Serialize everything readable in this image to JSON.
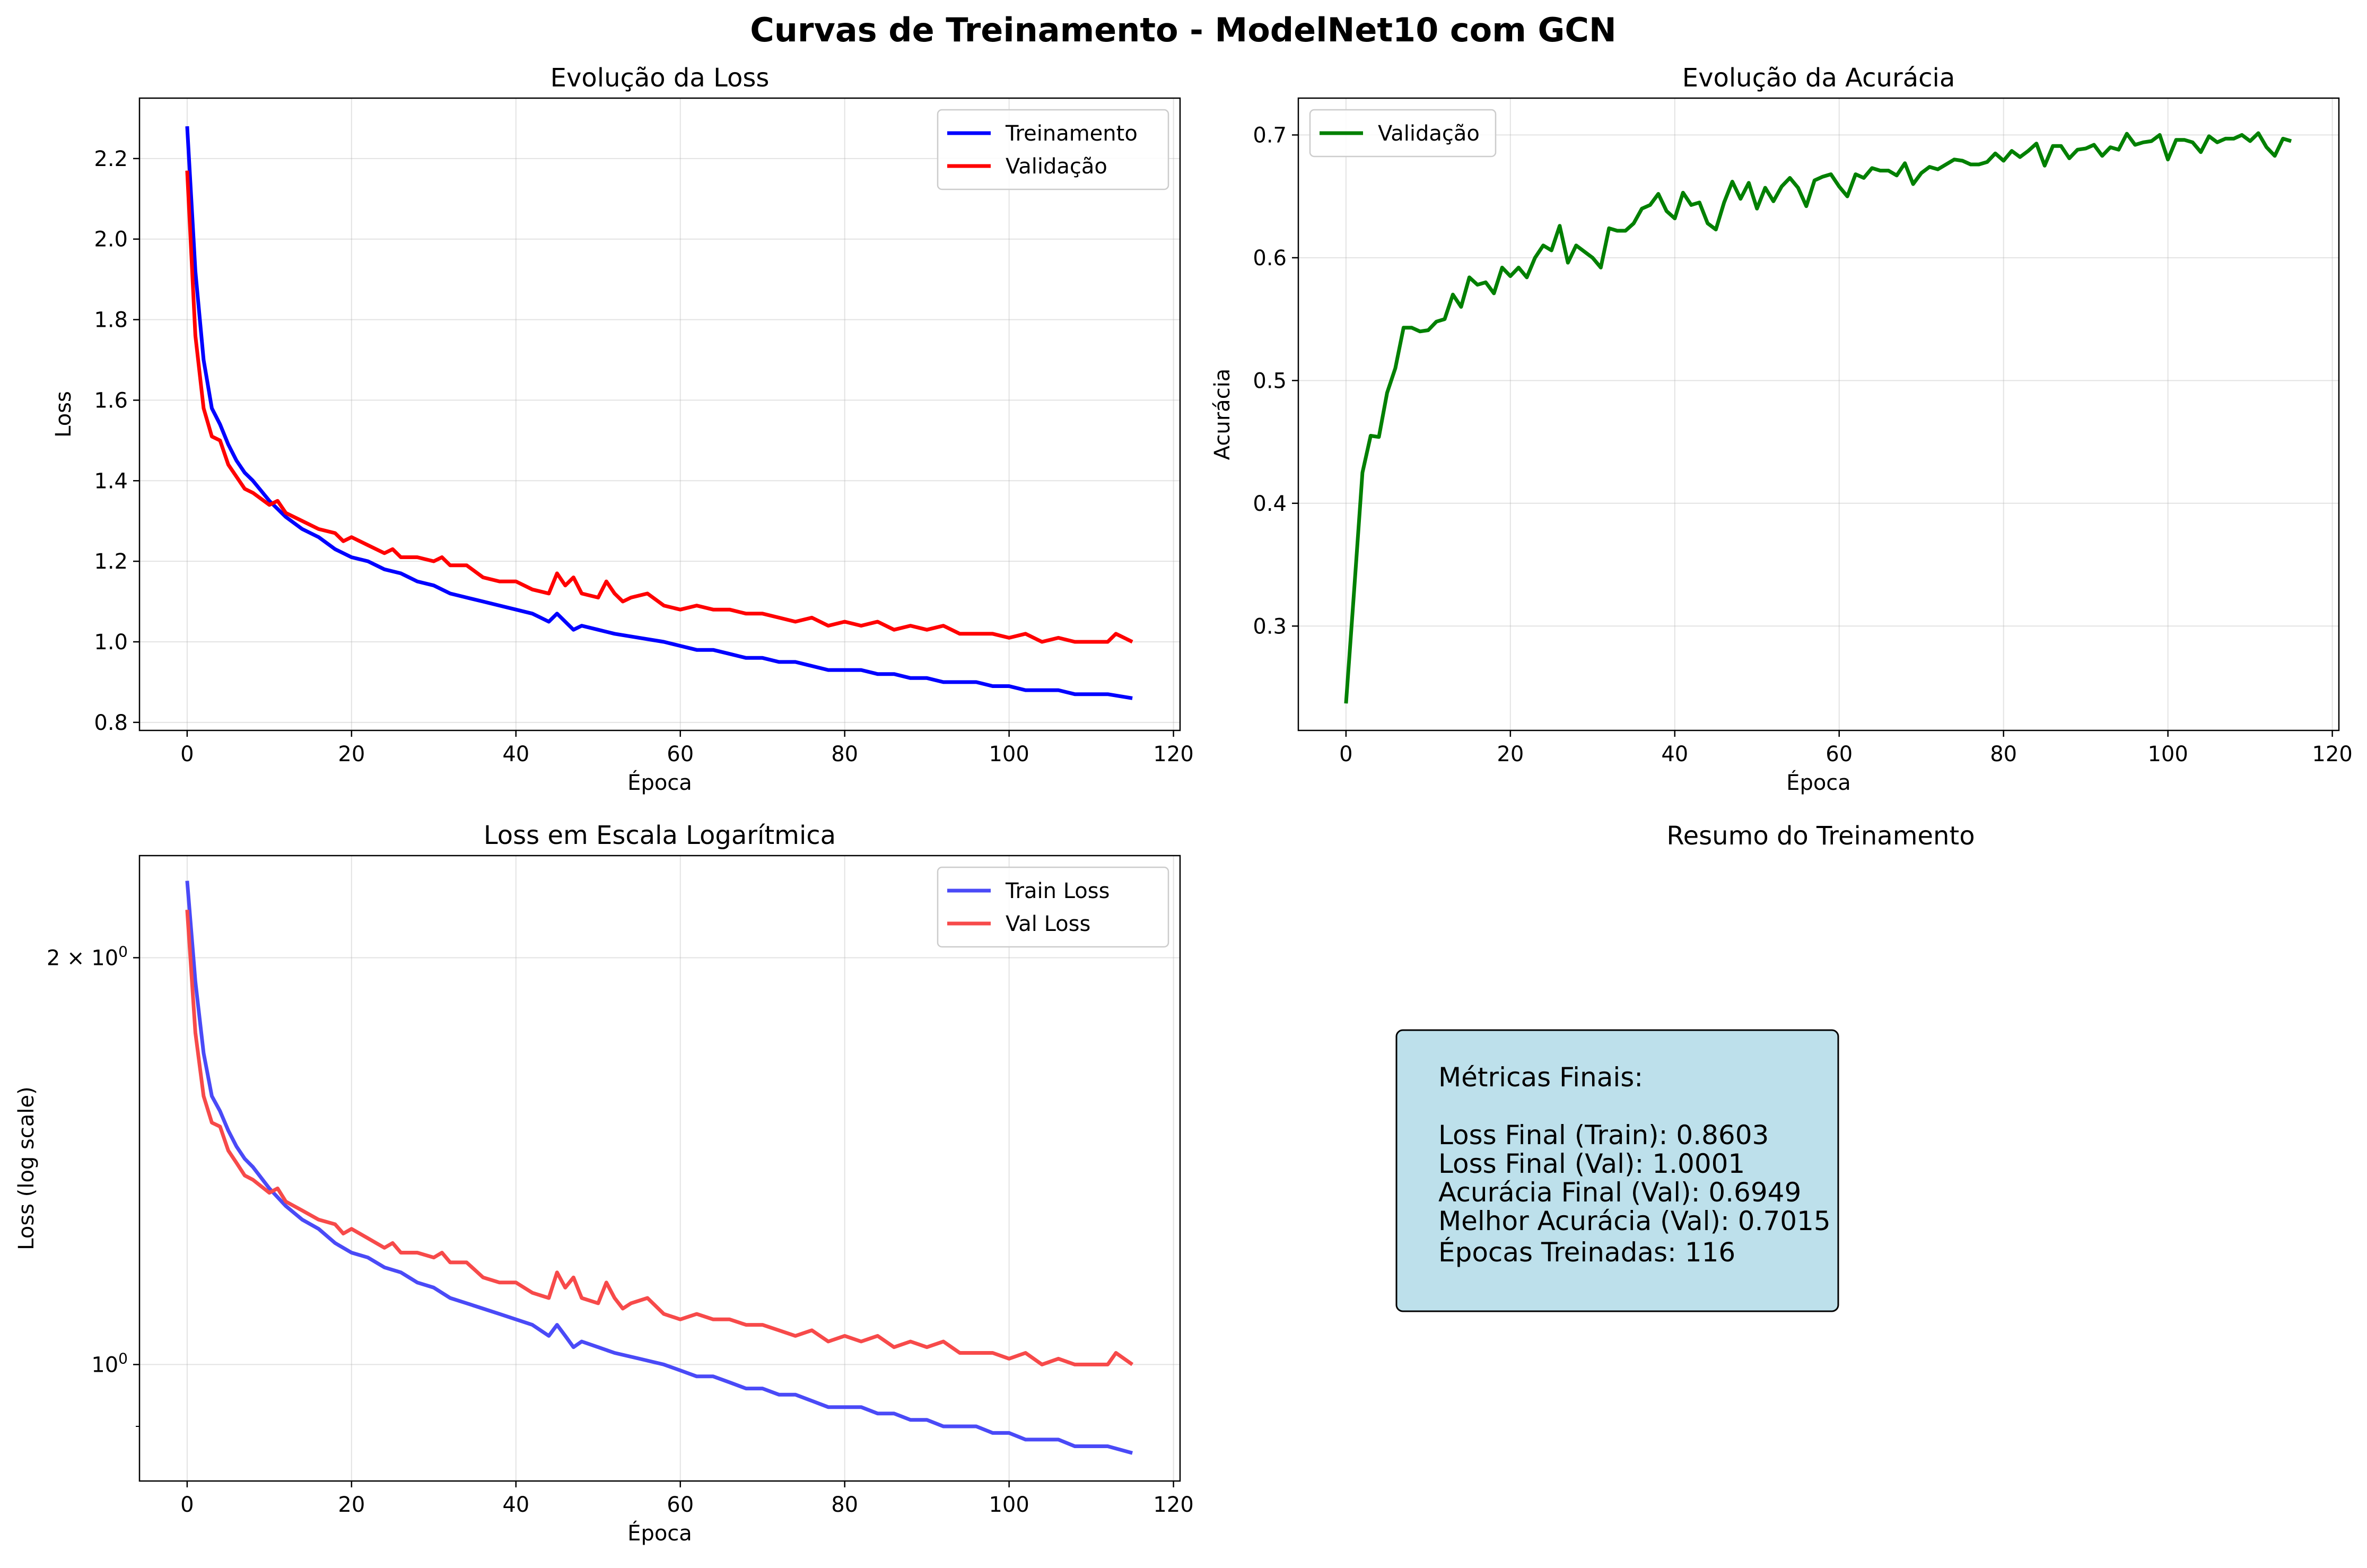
{
  "figure": {
    "title": "Curvas de Treinamento - ModelNet10 com GCN"
  },
  "colors": {
    "train": "#0000ff",
    "val": "#ff0000",
    "acc": "#008000",
    "train_alpha": "#4a4af7",
    "val_alpha": "#f74a4a",
    "summary_bg": "#add8e6"
  },
  "chart_data": [
    {
      "type": "line",
      "title": "Evolução da Loss",
      "xlabel": "Época",
      "ylabel": "Loss",
      "xlim": [
        -5.8,
        120.8
      ],
      "ylim": [
        0.78,
        2.35
      ],
      "xticks": [
        0,
        20,
        40,
        60,
        80,
        100,
        120
      ],
      "yticks": [
        0.8,
        1.0,
        1.2,
        1.4,
        1.6,
        1.8,
        2.0,
        2.2
      ],
      "ytick_labels": [
        "0.8",
        "1.0",
        "1.2",
        "1.4",
        "1.6",
        "1.8",
        "2.0",
        "2.2"
      ],
      "grid": true,
      "legend_position": "upper right",
      "series": [
        {
          "name": "Treinamento",
          "color": "#0000ff",
          "x": [
            0,
            1,
            2,
            3,
            4,
            5,
            6,
            7,
            8,
            10,
            12,
            14,
            16,
            18,
            20,
            22,
            24,
            26,
            28,
            30,
            32,
            34,
            36,
            38,
            40,
            42,
            44,
            45,
            46,
            47,
            48,
            50,
            52,
            55,
            58,
            60,
            62,
            64,
            66,
            68,
            70,
            72,
            74,
            76,
            78,
            80,
            82,
            84,
            86,
            88,
            90,
            92,
            94,
            96,
            98,
            100,
            102,
            104,
            106,
            108,
            110,
            112,
            115
          ],
          "y": [
            2.28,
            1.92,
            1.7,
            1.58,
            1.54,
            1.49,
            1.45,
            1.42,
            1.4,
            1.35,
            1.31,
            1.28,
            1.26,
            1.23,
            1.21,
            1.2,
            1.18,
            1.17,
            1.15,
            1.14,
            1.12,
            1.11,
            1.1,
            1.09,
            1.08,
            1.07,
            1.05,
            1.07,
            1.05,
            1.03,
            1.04,
            1.03,
            1.02,
            1.01,
            1.0,
            0.99,
            0.98,
            0.98,
            0.97,
            0.96,
            0.96,
            0.95,
            0.95,
            0.94,
            0.93,
            0.93,
            0.93,
            0.92,
            0.92,
            0.91,
            0.91,
            0.9,
            0.9,
            0.9,
            0.89,
            0.89,
            0.88,
            0.88,
            0.88,
            0.87,
            0.87,
            0.87,
            0.86
          ]
        },
        {
          "name": "Validação",
          "color": "#ff0000",
          "x": [
            0,
            1,
            2,
            3,
            4,
            5,
            6,
            7,
            8,
            10,
            11,
            12,
            14,
            16,
            18,
            19,
            20,
            22,
            24,
            25,
            26,
            28,
            30,
            31,
            32,
            34,
            36,
            38,
            40,
            42,
            44,
            45,
            46,
            47,
            48,
            50,
            51,
            52,
            53,
            54,
            56,
            58,
            60,
            62,
            64,
            66,
            68,
            70,
            72,
            74,
            76,
            78,
            80,
            82,
            84,
            86,
            88,
            90,
            92,
            94,
            96,
            98,
            100,
            102,
            104,
            106,
            108,
            110,
            112,
            113,
            115
          ],
          "y": [
            2.17,
            1.76,
            1.58,
            1.51,
            1.5,
            1.44,
            1.41,
            1.38,
            1.37,
            1.34,
            1.35,
            1.32,
            1.3,
            1.28,
            1.27,
            1.25,
            1.26,
            1.24,
            1.22,
            1.23,
            1.21,
            1.21,
            1.2,
            1.21,
            1.19,
            1.19,
            1.16,
            1.15,
            1.15,
            1.13,
            1.12,
            1.17,
            1.14,
            1.16,
            1.12,
            1.11,
            1.15,
            1.12,
            1.1,
            1.11,
            1.12,
            1.09,
            1.08,
            1.09,
            1.08,
            1.08,
            1.07,
            1.07,
            1.06,
            1.05,
            1.06,
            1.04,
            1.05,
            1.04,
            1.05,
            1.03,
            1.04,
            1.03,
            1.04,
            1.02,
            1.02,
            1.02,
            1.01,
            1.02,
            1.0,
            1.01,
            1.0,
            1.0,
            1.0,
            1.02,
            1.0
          ]
        }
      ]
    },
    {
      "type": "line",
      "title": "Evolução da Acurácia",
      "xlabel": "Época",
      "ylabel": "Acurácia",
      "xlim": [
        -5.8,
        120.8
      ],
      "ylim": [
        0.215,
        0.73
      ],
      "xticks": [
        0,
        20,
        40,
        60,
        80,
        100,
        120
      ],
      "yticks": [
        0.3,
        0.4,
        0.5,
        0.6,
        0.7
      ],
      "ytick_labels": [
        "0.3",
        "0.4",
        "0.5",
        "0.6",
        "0.7"
      ],
      "grid": true,
      "legend_position": "upper left",
      "series": [
        {
          "name": "Validação",
          "color": "#008000",
          "x": [
            0,
            1,
            2,
            3,
            4,
            5,
            6,
            7,
            8,
            9,
            10,
            11,
            12,
            13,
            14,
            15,
            16,
            17,
            18,
            19,
            20,
            21,
            22,
            23,
            24,
            25,
            26,
            27,
            28,
            29,
            30,
            31,
            32,
            33,
            34,
            35,
            36,
            37,
            38,
            39,
            40,
            41,
            42,
            43,
            44,
            45,
            46,
            47,
            48,
            49,
            50,
            51,
            52,
            53,
            54,
            55,
            56,
            57,
            58,
            59,
            60,
            61,
            62,
            63,
            64,
            65,
            66,
            67,
            68,
            69,
            70,
            71,
            72,
            73,
            74,
            75,
            76,
            77,
            78,
            79,
            80,
            81,
            82,
            83,
            84,
            85,
            86,
            87,
            88,
            89,
            90,
            91,
            92,
            93,
            94,
            95,
            96,
            97,
            98,
            99,
            100,
            101,
            102,
            103,
            104,
            105,
            106,
            107,
            108,
            109,
            110,
            111,
            112,
            113,
            114,
            115
          ],
          "y": [
            0.237,
            0.33,
            0.425,
            0.455,
            0.454,
            0.49,
            0.51,
            0.543,
            0.543,
            0.54,
            0.541,
            0.548,
            0.55,
            0.57,
            0.56,
            0.584,
            0.578,
            0.58,
            0.571,
            0.592,
            0.585,
            0.592,
            0.584,
            0.6,
            0.61,
            0.606,
            0.626,
            0.596,
            0.61,
            0.605,
            0.6,
            0.592,
            0.624,
            0.622,
            0.622,
            0.628,
            0.64,
            0.643,
            0.652,
            0.638,
            0.632,
            0.653,
            0.643,
            0.645,
            0.628,
            0.623,
            0.645,
            0.662,
            0.648,
            0.661,
            0.64,
            0.657,
            0.646,
            0.658,
            0.665,
            0.657,
            0.642,
            0.663,
            0.666,
            0.668,
            0.658,
            0.65,
            0.668,
            0.665,
            0.673,
            0.671,
            0.671,
            0.667,
            0.677,
            0.66,
            0.669,
            0.674,
            0.672,
            0.676,
            0.68,
            0.679,
            0.676,
            0.676,
            0.678,
            0.685,
            0.679,
            0.687,
            0.682,
            0.687,
            0.693,
            0.675,
            0.691,
            0.691,
            0.681,
            0.688,
            0.689,
            0.692,
            0.683,
            0.69,
            0.688,
            0.701,
            0.692,
            0.694,
            0.695,
            0.7,
            0.68,
            0.696,
            0.696,
            0.694,
            0.686,
            0.699,
            0.694,
            0.697,
            0.697,
            0.7,
            0.695,
            0.7015,
            0.69,
            0.683,
            0.697,
            0.695
          ]
        }
      ]
    },
    {
      "type": "line",
      "title": "Loss em Escala Logarítmica",
      "xlabel": "Época",
      "ylabel": "Loss (log scale)",
      "yscale": "log",
      "xlim": [
        -5.8,
        120.8
      ],
      "ylim": [
        0.82,
        2.38
      ],
      "xticks": [
        0,
        20,
        40,
        60,
        80,
        100,
        120
      ],
      "yticks": [
        1.0,
        2.0
      ],
      "ytick_labels": [
        "10^0",
        "2×10^0"
      ],
      "grid": true,
      "legend_position": "upper right",
      "series": [
        {
          "name": "Train Loss",
          "color": "#4a4af7",
          "x": [
            0,
            1,
            2,
            3,
            4,
            5,
            6,
            7,
            8,
            10,
            12,
            14,
            16,
            18,
            20,
            22,
            24,
            26,
            28,
            30,
            32,
            34,
            36,
            38,
            40,
            42,
            44,
            45,
            46,
            47,
            48,
            50,
            52,
            55,
            58,
            60,
            62,
            64,
            66,
            68,
            70,
            72,
            74,
            76,
            78,
            80,
            82,
            84,
            86,
            88,
            90,
            92,
            94,
            96,
            98,
            100,
            102,
            104,
            106,
            108,
            110,
            112,
            115
          ],
          "y": [
            2.28,
            1.92,
            1.7,
            1.58,
            1.54,
            1.49,
            1.45,
            1.42,
            1.4,
            1.35,
            1.31,
            1.28,
            1.26,
            1.23,
            1.21,
            1.2,
            1.18,
            1.17,
            1.15,
            1.14,
            1.12,
            1.11,
            1.1,
            1.09,
            1.08,
            1.07,
            1.05,
            1.07,
            1.05,
            1.03,
            1.04,
            1.03,
            1.02,
            1.01,
            1.0,
            0.99,
            0.98,
            0.98,
            0.97,
            0.96,
            0.96,
            0.95,
            0.95,
            0.94,
            0.93,
            0.93,
            0.93,
            0.92,
            0.92,
            0.91,
            0.91,
            0.9,
            0.9,
            0.9,
            0.89,
            0.89,
            0.88,
            0.88,
            0.88,
            0.87,
            0.87,
            0.87,
            0.86
          ]
        },
        {
          "name": "Val Loss",
          "color": "#f74a4a",
          "x": [
            0,
            1,
            2,
            3,
            4,
            5,
            6,
            7,
            8,
            10,
            11,
            12,
            14,
            16,
            18,
            19,
            20,
            22,
            24,
            25,
            26,
            28,
            30,
            31,
            32,
            34,
            36,
            38,
            40,
            42,
            44,
            45,
            46,
            47,
            48,
            50,
            51,
            52,
            53,
            54,
            56,
            58,
            60,
            62,
            64,
            66,
            68,
            70,
            72,
            74,
            76,
            78,
            80,
            82,
            84,
            86,
            88,
            90,
            92,
            94,
            96,
            98,
            100,
            102,
            104,
            106,
            108,
            110,
            112,
            113,
            115
          ],
          "y": [
            2.17,
            1.76,
            1.58,
            1.51,
            1.5,
            1.44,
            1.41,
            1.38,
            1.37,
            1.34,
            1.35,
            1.32,
            1.3,
            1.28,
            1.27,
            1.25,
            1.26,
            1.24,
            1.22,
            1.23,
            1.21,
            1.21,
            1.2,
            1.21,
            1.19,
            1.19,
            1.16,
            1.15,
            1.15,
            1.13,
            1.12,
            1.17,
            1.14,
            1.16,
            1.12,
            1.11,
            1.15,
            1.12,
            1.1,
            1.11,
            1.12,
            1.09,
            1.08,
            1.09,
            1.08,
            1.08,
            1.07,
            1.07,
            1.06,
            1.05,
            1.06,
            1.04,
            1.05,
            1.04,
            1.05,
            1.03,
            1.04,
            1.03,
            1.04,
            1.02,
            1.02,
            1.02,
            1.01,
            1.02,
            1.0,
            1.01,
            1.0,
            1.0,
            1.0,
            1.02,
            1.0
          ]
        }
      ]
    }
  ],
  "summary": {
    "title": "Resumo do Treinamento",
    "lines": [
      "Métricas Finais:",
      "",
      "Loss Final (Train): 0.8603",
      "Loss Final (Val): 1.0001",
      "Acurácia Final (Val): 0.6949",
      "Melhor Acurácia (Val): 0.7015",
      "Épocas Treinadas: 116"
    ]
  }
}
